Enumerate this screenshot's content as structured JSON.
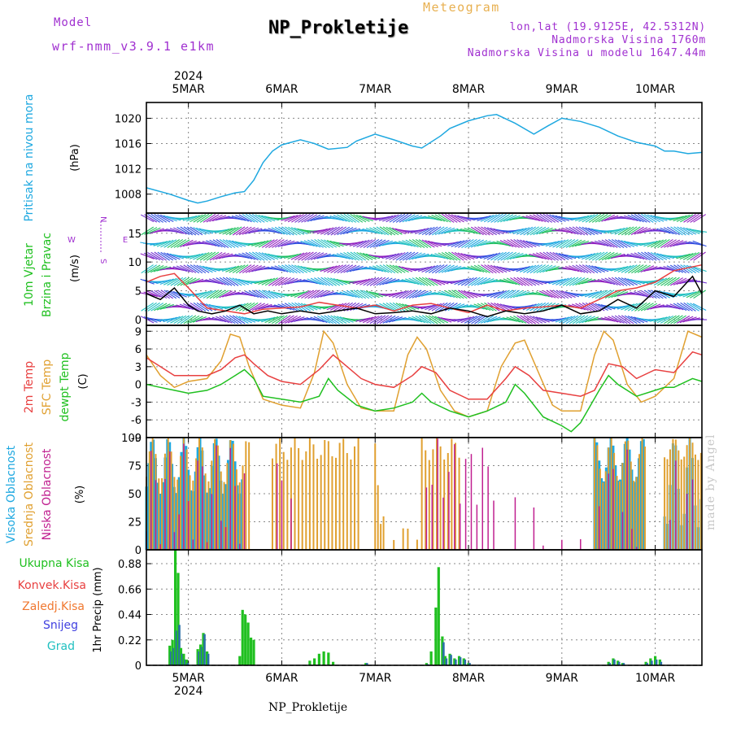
{
  "header": {
    "model_label": "Model",
    "model_name": "wrf-nmm_v3.9.1 e1km",
    "title": "NP_Prokletije",
    "meteogram_label": "Meteogram",
    "location_line1": "lon,lat (19.9125E, 42.5312N)",
    "location_line2": "Nadmorska Visina 1760m",
    "location_line3": "Nadmorska Visina u modelu 1647.44m"
  },
  "footer": {
    "station": "NP_Prokletije",
    "watermark": "made by Angel"
  },
  "colors": {
    "pressure": "#1ea8e0",
    "temp_2m": "#e84040",
    "temp_sfc": "#e0a030",
    "dewpoint": "#20c020",
    "cloud_high": "#1ea8e0",
    "cloud_mid": "#e0a030",
    "cloud_low": "#c02090",
    "precip_total": "#20c020",
    "precip_conv": "#e84040",
    "precip_frozen": "#f07830",
    "precip_snow": "#4040e0",
    "precip_hail": "#20c0c0"
  },
  "time_axis": {
    "year": "2024",
    "day_labels": [
      "5MAR",
      "6MAR",
      "7MAR",
      "8MAR",
      "9MAR",
      "10MAR"
    ],
    "start_day": 4.55,
    "end_day": 10.5
  },
  "chart_data": [
    {
      "type": "line",
      "name_label": "Pritisak na nivou mora",
      "ylabel": "(hPa)",
      "ylim": [
        1005,
        1022.5
      ],
      "yticks": [
        1008,
        1012,
        1016,
        1020
      ],
      "grid": true,
      "series": [
        {
          "color": "#1ea8e0",
          "x": [
            4.55,
            4.8,
            5.0,
            5.1,
            5.2,
            5.35,
            5.5,
            5.6,
            5.7,
            5.8,
            5.9,
            6.0,
            6.2,
            6.35,
            6.5,
            6.7,
            6.8,
            7.0,
            7.2,
            7.4,
            7.5,
            7.7,
            7.8,
            8.0,
            8.2,
            8.3,
            8.5,
            8.7,
            8.85,
            9.0,
            9.2,
            9.4,
            9.6,
            9.8,
            10.0,
            10.1,
            10.2,
            10.35,
            10.5
          ],
          "y": [
            1009,
            1008,
            1007,
            1006.6,
            1006.9,
            1007.6,
            1008.2,
            1008.4,
            1010.2,
            1013,
            1014.8,
            1015.8,
            1016.6,
            1016,
            1015.1,
            1015.4,
            1016.4,
            1017.5,
            1016.6,
            1015.6,
            1015.3,
            1017.2,
            1018.4,
            1019.6,
            1020.4,
            1020.6,
            1019.2,
            1017.5,
            1018.8,
            1020,
            1019.5,
            1018.6,
            1017.2,
            1016.2,
            1015.6,
            1014.8,
            1014.8,
            1014.4,
            1014.6
          ]
        }
      ]
    },
    {
      "type": "line",
      "name_label": "10m Vjetar Brzina i Pravac",
      "ylabel": "(m/s)",
      "compass": {
        "n": "N",
        "s": "S",
        "w": "W",
        "e": "E"
      },
      "ylim": [
        -1,
        18.5
      ],
      "yticks": [
        0,
        5,
        10,
        15
      ],
      "grid": true,
      "series": [
        {
          "name": "",
          "color": "#000000",
          "x": [
            4.55,
            4.7,
            4.85,
            5.0,
            5.1,
            5.25,
            5.4,
            5.55,
            5.7,
            5.85,
            6.0,
            6.2,
            6.4,
            6.6,
            6.8,
            7.0,
            7.2,
            7.4,
            7.6,
            7.8,
            8.0,
            8.2,
            8.4,
            8.6,
            8.8,
            9.0,
            9.2,
            9.4,
            9.6,
            9.8,
            10.0,
            10.2,
            10.4,
            10.5
          ],
          "y": [
            4.5,
            3.5,
            5.5,
            2.5,
            1.5,
            1.0,
            1.5,
            2.5,
            1.0,
            1.5,
            1.0,
            1.5,
            1.0,
            1.5,
            2.0,
            1.0,
            1.2,
            1.5,
            1.0,
            2.0,
            1.5,
            0.5,
            1.5,
            1.0,
            1.5,
            2.5,
            1.0,
            1.5,
            3.5,
            2.0,
            5.0,
            4.0,
            7.5,
            4.5
          ]
        },
        {
          "name": "",
          "color": "#e84040",
          "x": [
            4.55,
            4.7,
            4.85,
            5.0,
            5.2,
            5.4,
            5.6,
            5.8,
            6.0,
            6.2,
            6.4,
            6.6,
            6.8,
            7.0,
            7.2,
            7.4,
            7.6,
            7.8,
            8.0,
            8.2,
            8.4,
            8.6,
            8.8,
            9.0,
            9.2,
            9.4,
            9.6,
            9.8,
            10.0,
            10.2,
            10.5
          ],
          "y": [
            6.5,
            7.5,
            8.0,
            5.5,
            2.0,
            1.5,
            1.0,
            1.8,
            2.0,
            2.2,
            3.0,
            2.5,
            2.0,
            2.5,
            1.5,
            2.5,
            2.8,
            2.0,
            1.2,
            2.5,
            1.5,
            2.0,
            2.2,
            2.5,
            2.0,
            3.5,
            5.0,
            5.5,
            6.5,
            8.5,
            9.5
          ]
        }
      ]
    },
    {
      "type": "line",
      "name_label": [
        "2m Temp",
        "SFC Temp",
        "dewpt Temp"
      ],
      "ylabel": "(C)",
      "ylim": [
        -9,
        10
      ],
      "yticks": [
        -9,
        -6,
        -3,
        0,
        3,
        6,
        9
      ],
      "grid": true,
      "series": [
        {
          "name": "2m Temp",
          "color": "#e84040",
          "x": [
            4.55,
            4.7,
            4.85,
            5.0,
            5.2,
            5.35,
            5.5,
            5.6,
            5.7,
            5.85,
            6.0,
            6.2,
            6.4,
            6.55,
            6.7,
            6.85,
            7.0,
            7.2,
            7.4,
            7.5,
            7.65,
            7.8,
            8.0,
            8.2,
            8.4,
            8.5,
            8.65,
            8.8,
            9.0,
            9.2,
            9.35,
            9.5,
            9.65,
            9.8,
            10.0,
            10.2,
            10.4,
            10.5
          ],
          "y": [
            4.5,
            3.0,
            1.5,
            1.5,
            1.5,
            2.5,
            4.5,
            5.0,
            3.5,
            1.5,
            0.5,
            0.0,
            2.5,
            5.0,
            3.0,
            1.0,
            0.0,
            -0.5,
            1.5,
            3.0,
            2.0,
            -1.0,
            -2.5,
            -2.5,
            1.0,
            3.0,
            1.5,
            -1.0,
            -1.5,
            -2.0,
            -1.0,
            3.5,
            3.0,
            1.0,
            2.5,
            2.0,
            5.5,
            5.0
          ]
        },
        {
          "name": "SFC Temp",
          "color": "#e0a030",
          "x": [
            4.55,
            4.7,
            4.85,
            5.0,
            5.2,
            5.35,
            5.45,
            5.55,
            5.65,
            5.8,
            6.0,
            6.2,
            6.35,
            6.45,
            6.55,
            6.7,
            6.85,
            7.0,
            7.2,
            7.35,
            7.45,
            7.55,
            7.7,
            7.85,
            8.0,
            8.2,
            8.35,
            8.5,
            8.6,
            8.75,
            8.9,
            9.0,
            9.2,
            9.35,
            9.45,
            9.55,
            9.7,
            9.85,
            10.0,
            10.2,
            10.35,
            10.5
          ],
          "y": [
            5.0,
            1.5,
            -0.5,
            0.5,
            1.0,
            4.0,
            8.5,
            8.0,
            3.0,
            -2.5,
            -3.5,
            -4.0,
            2.0,
            9.0,
            7.0,
            0.0,
            -4.0,
            -4.5,
            -4.5,
            5.0,
            8.0,
            6.0,
            -1.0,
            -4.5,
            -5.5,
            -4.5,
            3.0,
            7.0,
            7.5,
            2.0,
            -3.5,
            -4.5,
            -4.5,
            5.0,
            9.0,
            7.5,
            0.0,
            -3.0,
            -2.0,
            1.0,
            9.0,
            8.0
          ]
        },
        {
          "name": "dewpt Temp",
          "color": "#20c020",
          "x": [
            4.55,
            4.7,
            4.85,
            5.0,
            5.2,
            5.35,
            5.5,
            5.6,
            5.7,
            5.8,
            6.0,
            6.2,
            6.4,
            6.5,
            6.6,
            6.8,
            7.0,
            7.2,
            7.4,
            7.5,
            7.6,
            7.8,
            8.0,
            8.2,
            8.4,
            8.5,
            8.6,
            8.8,
            9.0,
            9.1,
            9.2,
            9.4,
            9.5,
            9.6,
            9.8,
            10.0,
            10.1,
            10.2,
            10.4,
            10.5
          ],
          "y": [
            0.0,
            -0.5,
            -1.0,
            -1.5,
            -1.0,
            0.0,
            1.5,
            2.5,
            1.0,
            -2.0,
            -2.5,
            -3.0,
            -2.0,
            1.0,
            -1.0,
            -3.5,
            -4.5,
            -4.0,
            -3.0,
            -1.5,
            -3.0,
            -4.5,
            -5.5,
            -4.5,
            -3.0,
            0.0,
            -1.5,
            -5.5,
            -7.0,
            -8.0,
            -6.5,
            -1.0,
            1.5,
            0.0,
            -2.0,
            -1.0,
            -0.5,
            -0.5,
            1.0,
            0.5
          ]
        }
      ]
    },
    {
      "type": "bar",
      "name_label": [
        "Visoka Oblacnost",
        "Srednja Oblacnost",
        "Niska Oblacnost"
      ],
      "ylabel": "(%)",
      "ylim": [
        0,
        100
      ],
      "yticks": [
        0,
        25,
        50,
        75,
        100
      ],
      "grid": true,
      "segments": [
        {
          "series": "high",
          "start": 4.55,
          "end": 5.6,
          "step": 0.025,
          "base": 75,
          "amp": 25
        },
        {
          "series": "mid",
          "start": 4.55,
          "end": 5.65,
          "step": 0.0333,
          "base": 80,
          "amp": 20
        },
        {
          "series": "low",
          "start": 4.55,
          "end": 5.6,
          "step": 0.05,
          "base": 50,
          "amp": 45
        },
        {
          "series": "mid",
          "start": 5.9,
          "end": 6.85,
          "step": 0.04,
          "base": 90,
          "amp": 10
        },
        {
          "series": "low",
          "start": 5.9,
          "end": 6.1,
          "step": 0.05,
          "base": 40,
          "amp": 50
        },
        {
          "series": "mid",
          "start": 7.0,
          "end": 7.1,
          "step": 0.03,
          "base": 60,
          "amp": 40
        },
        {
          "series": "mid",
          "start": 7.2,
          "end": 7.45,
          "step": 0.05,
          "base": 10,
          "amp": 15
        },
        {
          "series": "mid",
          "start": 7.5,
          "end": 7.9,
          "step": 0.04,
          "base": 90,
          "amp": 10
        },
        {
          "series": "low",
          "start": 7.55,
          "end": 8.3,
          "step": 0.06,
          "base": 70,
          "amp": 30
        },
        {
          "series": "low",
          "start": 8.4,
          "end": 8.7,
          "step": 0.1,
          "base": 5,
          "amp": 45
        },
        {
          "series": "low",
          "start": 8.8,
          "end": 9.2,
          "step": 0.2,
          "base": 5,
          "amp": 5
        },
        {
          "series": "high",
          "start": 9.35,
          "end": 9.9,
          "step": 0.025,
          "base": 80,
          "amp": 20
        },
        {
          "series": "mid",
          "start": 9.35,
          "end": 9.9,
          "step": 0.03,
          "base": 80,
          "amp": 20
        },
        {
          "series": "low",
          "start": 9.4,
          "end": 9.85,
          "step": 0.05,
          "base": 40,
          "amp": 50
        },
        {
          "series": "high",
          "start": 10.1,
          "end": 10.5,
          "step": 0.03,
          "base": 60,
          "amp": 40
        },
        {
          "series": "mid",
          "start": 10.1,
          "end": 10.5,
          "step": 0.03,
          "base": 90,
          "amp": 10
        },
        {
          "series": "low",
          "start": 10.1,
          "end": 10.5,
          "step": 0.06,
          "base": 30,
          "amp": 60
        }
      ]
    },
    {
      "type": "bar",
      "name_label": [
        "Ukupna Kisa",
        "Konvek.Kisa",
        "Zaledj.Kisa",
        "Snijeg",
        "Grad"
      ],
      "ylabel": "1hr Precip (mm)",
      "ylim": [
        0,
        1.0
      ],
      "yticks": [
        0,
        0.22,
        0.44,
        0.66,
        0.88
      ],
      "ytick_labels": [
        "0",
        "0.22",
        "0.44",
        "0.66",
        "0.88"
      ],
      "grid": true,
      "bars": [
        {
          "x": 4.8,
          "total": 0.17,
          "snow": 0.12
        },
        {
          "x": 4.83,
          "total": 0.22,
          "snow": 0.15
        },
        {
          "x": 4.86,
          "total": 1.0,
          "snow": 0.3
        },
        {
          "x": 4.89,
          "total": 0.8,
          "snow": 0.35
        },
        {
          "x": 4.92,
          "total": 0.15,
          "snow": 0.1
        },
        {
          "x": 4.95,
          "total": 0.1,
          "snow": 0.05
        },
        {
          "x": 4.98,
          "total": 0.05,
          "snow": 0.02
        },
        {
          "x": 5.1,
          "total": 0.14,
          "snow": 0.12
        },
        {
          "x": 5.13,
          "total": 0.18,
          "snow": 0.16
        },
        {
          "x": 5.16,
          "total": 0.28,
          "snow": 0.27
        },
        {
          "x": 5.2,
          "total": 0.12,
          "snow": 0.1
        },
        {
          "x": 5.55,
          "total": 0.08,
          "snow": 0.0
        },
        {
          "x": 5.58,
          "total": 0.48,
          "snow": 0.0
        },
        {
          "x": 5.61,
          "total": 0.44,
          "snow": 0.0
        },
        {
          "x": 5.64,
          "total": 0.37,
          "snow": 0.0
        },
        {
          "x": 5.67,
          "total": 0.24,
          "snow": 0.0
        },
        {
          "x": 5.7,
          "total": 0.22,
          "snow": 0.0
        },
        {
          "x": 6.3,
          "total": 0.04,
          "snow": 0.0
        },
        {
          "x": 6.35,
          "total": 0.06,
          "snow": 0.0
        },
        {
          "x": 6.4,
          "total": 0.1,
          "snow": 0.0
        },
        {
          "x": 6.45,
          "total": 0.12,
          "snow": 0.0
        },
        {
          "x": 6.5,
          "total": 0.11,
          "snow": 0.0
        },
        {
          "x": 6.55,
          "total": 0.03,
          "snow": 0.0
        },
        {
          "x": 6.9,
          "total": 0.02,
          "snow": 0.02
        },
        {
          "x": 7.55,
          "total": 0.02,
          "snow": 0.01
        },
        {
          "x": 7.6,
          "total": 0.12,
          "snow": 0.0
        },
        {
          "x": 7.65,
          "total": 0.5,
          "snow": 0.0
        },
        {
          "x": 7.68,
          "total": 0.85,
          "snow": 0.0
        },
        {
          "x": 7.72,
          "total": 0.25,
          "snow": 0.2
        },
        {
          "x": 7.75,
          "total": 0.08,
          "snow": 0.06
        },
        {
          "x": 7.8,
          "total": 0.1,
          "snow": 0.09
        },
        {
          "x": 7.85,
          "total": 0.06,
          "snow": 0.05
        },
        {
          "x": 7.9,
          "total": 0.08,
          "snow": 0.07
        },
        {
          "x": 7.95,
          "total": 0.06,
          "snow": 0.05
        },
        {
          "x": 8.0,
          "total": 0.02,
          "snow": 0.02
        },
        {
          "x": 9.5,
          "total": 0.03,
          "snow": 0.02
        },
        {
          "x": 9.55,
          "total": 0.06,
          "snow": 0.05
        },
        {
          "x": 9.6,
          "total": 0.04,
          "snow": 0.03
        },
        {
          "x": 9.65,
          "total": 0.02,
          "snow": 0.02
        },
        {
          "x": 9.9,
          "total": 0.03,
          "snow": 0.02
        },
        {
          "x": 9.95,
          "total": 0.06,
          "snow": 0.04
        },
        {
          "x": 10.0,
          "total": 0.08,
          "snow": 0.05
        },
        {
          "x": 10.05,
          "total": 0.05,
          "snow": 0.03
        }
      ]
    }
  ]
}
